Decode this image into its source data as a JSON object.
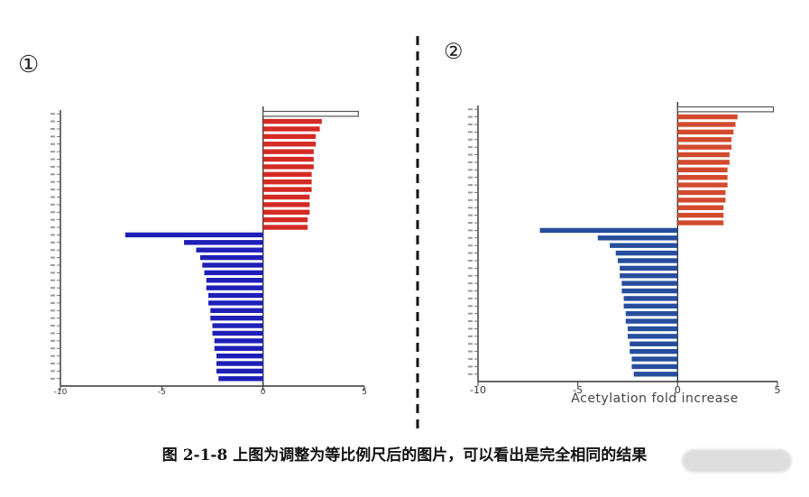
{
  "chart_data": [
    {
      "type": "bar",
      "orientation": "horizontal",
      "panel_label": "①",
      "xlim": [
        -10,
        5
      ],
      "xticks": [
        "-10",
        "-5",
        "0",
        "5"
      ],
      "xlabel": "",
      "grid": false,
      "outline_color": "#555555",
      "values": [
        4.7,
        2.9,
        2.8,
        2.6,
        2.6,
        2.5,
        2.5,
        2.5,
        2.4,
        2.4,
        2.4,
        2.3,
        2.3,
        2.3,
        2.2,
        2.2,
        -6.8,
        -3.9,
        -3.3,
        -3.1,
        -3.0,
        -2.9,
        -2.8,
        -2.8,
        -2.7,
        -2.7,
        -2.6,
        -2.6,
        -2.5,
        -2.5,
        -2.4,
        -2.4,
        -2.3,
        -2.3,
        -2.3,
        -2.2
      ],
      "colors": {
        "positive": "#d42a24",
        "negative": "#1f1fb8",
        "outlier": "#ffffff"
      }
    },
    {
      "type": "bar",
      "orientation": "horizontal",
      "panel_label": "②",
      "xlim": [
        -10,
        5
      ],
      "xticks": [
        "-10",
        "-5",
        "0",
        "5"
      ],
      "xlabel": "Acetylation fold increase",
      "grid": false,
      "outline_color": "#555555",
      "values": [
        4.8,
        3.0,
        2.9,
        2.8,
        2.7,
        2.7,
        2.6,
        2.6,
        2.5,
        2.5,
        2.5,
        2.4,
        2.4,
        2.3,
        2.3,
        2.3,
        -6.9,
        -4.0,
        -3.4,
        -3.1,
        -3.0,
        -2.9,
        -2.9,
        -2.8,
        -2.8,
        -2.7,
        -2.7,
        -2.6,
        -2.6,
        -2.5,
        -2.5,
        -2.4,
        -2.4,
        -2.3,
        -2.3,
        -2.2
      ],
      "colors": {
        "positive": "#d24a2e",
        "negative": "#274e9c",
        "outlier": "#ffffff"
      }
    }
  ],
  "divider": {
    "color": "#111111"
  },
  "caption": "图 2-1-8  上图为调整为等比例尺后的图片，可以看出是完全相同的结果"
}
